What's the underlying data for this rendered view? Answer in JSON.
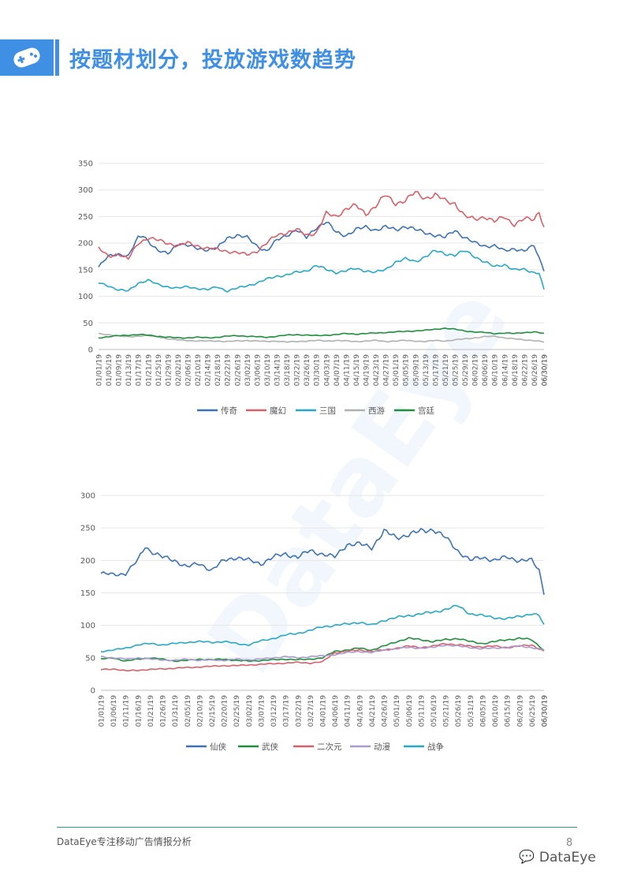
{
  "header": {
    "title": "按题材划分，投放游戏数趋势",
    "icon": "gamepad-icon"
  },
  "watermark_text": "DataEye",
  "footer": {
    "text": "DataEye专注移动广告情报分析",
    "page": "8",
    "logo_text": "DataEye"
  },
  "colors": {
    "accent": "#3f8fe5"
  },
  "chart_data": [
    {
      "type": "line",
      "ylim": [
        0,
        350
      ],
      "yticks": [
        0,
        50,
        100,
        150,
        200,
        250,
        300,
        350
      ],
      "x_start": "2019-01-01",
      "x_end": "2019-06-30",
      "x_label_step": 4,
      "grid": true,
      "legend": "bottom",
      "series": [
        {
          "name": "传奇",
          "color": "#3d72b8",
          "key_x": [
            "01/01",
            "01/05",
            "01/09",
            "01/13",
            "01/17",
            "01/19",
            "01/21",
            "01/25",
            "01/29",
            "02/02",
            "02/06",
            "02/10",
            "02/14",
            "02/18",
            "02/22",
            "02/26",
            "03/02",
            "03/06",
            "03/10",
            "03/14",
            "03/18",
            "03/22",
            "03/26",
            "03/30",
            "04/03",
            "04/07",
            "04/11",
            "04/15",
            "04/19",
            "04/23",
            "04/27",
            "05/01",
            "05/05",
            "05/09",
            "05/13",
            "05/17",
            "05/21",
            "05/25",
            "05/29",
            "06/02",
            "06/06",
            "06/10",
            "06/14",
            "06/18",
            "06/22",
            "06/26",
            "06/30"
          ],
          "key_y": [
            155,
            175,
            180,
            175,
            210,
            215,
            205,
            185,
            180,
            200,
            195,
            190,
            188,
            190,
            210,
            215,
            210,
            195,
            185,
            205,
            215,
            225,
            210,
            230,
            240,
            220,
            215,
            225,
            230,
            225,
            230,
            225,
            232,
            225,
            220,
            215,
            210,
            225,
            210,
            200,
            195,
            195,
            185,
            190,
            185,
            195,
            150
          ]
        },
        {
          "name": "魔幻",
          "color": "#d9606a",
          "key_x": [
            "01/01",
            "01/05",
            "01/09",
            "01/13",
            "01/17",
            "01/21",
            "01/25",
            "01/29",
            "02/02",
            "02/06",
            "02/10",
            "02/14",
            "02/18",
            "02/22",
            "02/26",
            "03/02",
            "03/06",
            "03/10",
            "03/14",
            "03/18",
            "03/22",
            "03/26",
            "03/30",
            "04/03",
            "04/07",
            "04/11",
            "04/15",
            "04/19",
            "04/23",
            "04/27",
            "05/01",
            "05/05",
            "05/09",
            "05/13",
            "05/17",
            "05/21",
            "05/25",
            "05/29",
            "06/02",
            "06/06",
            "06/10",
            "06/14",
            "06/18",
            "06/22",
            "06/26",
            "06/28",
            "06/30"
          ],
          "key_y": [
            190,
            175,
            180,
            170,
            200,
            210,
            205,
            200,
            195,
            200,
            195,
            190,
            188,
            185,
            182,
            178,
            185,
            200,
            215,
            220,
            225,
            215,
            220,
            255,
            250,
            265,
            270,
            255,
            270,
            290,
            275,
            280,
            295,
            285,
            290,
            280,
            275,
            250,
            245,
            250,
            240,
            250,
            235,
            245,
            245,
            260,
            230
          ]
        },
        {
          "name": "三国",
          "color": "#26a8c9",
          "key_x": [
            "01/01",
            "01/05",
            "01/09",
            "01/13",
            "01/17",
            "01/21",
            "01/25",
            "01/29",
            "02/02",
            "02/06",
            "02/10",
            "02/14",
            "02/18",
            "02/22",
            "02/26",
            "03/02",
            "03/06",
            "03/10",
            "03/14",
            "03/18",
            "03/22",
            "03/26",
            "03/30",
            "04/03",
            "04/07",
            "04/11",
            "04/15",
            "04/19",
            "04/23",
            "04/27",
            "05/01",
            "05/05",
            "05/09",
            "05/13",
            "05/17",
            "05/21",
            "05/25",
            "05/29",
            "06/02",
            "06/06",
            "06/10",
            "06/14",
            "06/18",
            "06/22",
            "06/26",
            "06/28",
            "06/30"
          ],
          "key_y": [
            125,
            120,
            112,
            110,
            125,
            130,
            122,
            118,
            115,
            118,
            115,
            112,
            118,
            110,
            115,
            120,
            125,
            132,
            138,
            140,
            145,
            148,
            158,
            150,
            145,
            148,
            152,
            148,
            145,
            150,
            165,
            170,
            165,
            175,
            185,
            180,
            178,
            185,
            175,
            165,
            155,
            160,
            150,
            150,
            145,
            145,
            112
          ]
        },
        {
          "name": "西游",
          "color": "#b0b0b0",
          "key_x": [
            "01/01",
            "01/05",
            "01/09",
            "01/13",
            "01/17",
            "01/21",
            "01/25",
            "01/29",
            "02/02",
            "02/06",
            "02/10",
            "02/14",
            "02/18",
            "02/22",
            "02/26",
            "03/02",
            "03/06",
            "03/10",
            "03/14",
            "03/18",
            "03/22",
            "03/26",
            "03/30",
            "04/03",
            "04/07",
            "04/11",
            "04/15",
            "04/19",
            "04/23",
            "04/27",
            "05/01",
            "05/05",
            "05/09",
            "05/13",
            "05/17",
            "05/21",
            "05/25",
            "05/29",
            "06/02",
            "06/06",
            "06/10",
            "06/14",
            "06/18",
            "06/22",
            "06/26",
            "06/30"
          ],
          "key_y": [
            30,
            28,
            25,
            24,
            25,
            26,
            24,
            20,
            18,
            17,
            16,
            16,
            16,
            15,
            16,
            17,
            16,
            15,
            16,
            14,
            15,
            16,
            17,
            16,
            17,
            16,
            15,
            16,
            17,
            15,
            16,
            17,
            16,
            15,
            17,
            16,
            18,
            20,
            22,
            24,
            25,
            22,
            20,
            18,
            17,
            14
          ]
        },
        {
          "name": "宫廷",
          "color": "#1e8f3c",
          "key_x": [
            "01/01",
            "01/05",
            "01/09",
            "01/13",
            "01/17",
            "01/21",
            "01/25",
            "01/29",
            "02/02",
            "02/06",
            "02/10",
            "02/14",
            "02/18",
            "02/22",
            "02/26",
            "03/02",
            "03/06",
            "03/10",
            "03/14",
            "03/18",
            "03/22",
            "03/26",
            "03/30",
            "04/03",
            "04/07",
            "04/11",
            "04/15",
            "04/19",
            "04/23",
            "04/27",
            "05/01",
            "05/05",
            "05/09",
            "05/13",
            "05/17",
            "05/21",
            "05/25",
            "05/29",
            "06/02",
            "06/06",
            "06/10",
            "06/14",
            "06/18",
            "06/22",
            "06/26",
            "06/30"
          ],
          "key_y": [
            22,
            24,
            26,
            27,
            28,
            27,
            25,
            23,
            22,
            22,
            23,
            22,
            23,
            25,
            26,
            25,
            24,
            23,
            25,
            27,
            28,
            27,
            26,
            27,
            28,
            30,
            29,
            30,
            31,
            32,
            33,
            34,
            35,
            36,
            38,
            40,
            38,
            35,
            33,
            32,
            30,
            31,
            30,
            32,
            33,
            30
          ]
        }
      ]
    },
    {
      "type": "line",
      "ylim": [
        0,
        300
      ],
      "yticks": [
        0,
        50,
        100,
        150,
        200,
        250,
        300
      ],
      "x_start": "2019-01-01",
      "x_end": "2019-06-30",
      "x_label_step": 5,
      "grid": true,
      "legend": "bottom",
      "series": [
        {
          "name": "仙侠",
          "color": "#3d72b8",
          "key_x": [
            "01/01",
            "01/06",
            "01/11",
            "01/16",
            "01/19",
            "01/21",
            "01/26",
            "01/31",
            "02/05",
            "02/10",
            "02/15",
            "02/20",
            "02/25",
            "03/02",
            "03/07",
            "03/12",
            "03/17",
            "03/22",
            "03/27",
            "04/01",
            "04/06",
            "04/11",
            "04/16",
            "04/21",
            "04/26",
            "05/01",
            "05/06",
            "05/11",
            "05/16",
            "05/21",
            "05/26",
            "05/31",
            "06/05",
            "06/10",
            "06/15",
            "06/20",
            "06/25",
            "06/28",
            "06/30"
          ],
          "key_y": [
            180,
            178,
            180,
            200,
            222,
            215,
            205,
            200,
            190,
            195,
            185,
            200,
            205,
            200,
            195,
            205,
            210,
            205,
            215,
            210,
            205,
            225,
            225,
            220,
            245,
            235,
            240,
            245,
            248,
            235,
            215,
            200,
            205,
            200,
            205,
            200,
            200,
            185,
            150
          ]
        },
        {
          "name": "武侠",
          "color": "#1e8f3c",
          "key_x": [
            "01/01",
            "01/06",
            "01/11",
            "01/16",
            "01/21",
            "01/26",
            "01/31",
            "02/05",
            "02/10",
            "02/15",
            "02/20",
            "02/25",
            "03/02",
            "03/07",
            "03/12",
            "03/17",
            "03/22",
            "03/27",
            "04/01",
            "04/06",
            "04/11",
            "04/16",
            "04/21",
            "04/26",
            "05/01",
            "05/06",
            "05/11",
            "05/16",
            "05/21",
            "05/26",
            "05/31",
            "06/05",
            "06/10",
            "06/15",
            "06/20",
            "06/25",
            "06/30"
          ],
          "key_y": [
            48,
            50,
            45,
            48,
            50,
            48,
            45,
            46,
            48,
            47,
            48,
            46,
            45,
            46,
            47,
            48,
            47,
            48,
            50,
            60,
            62,
            65,
            62,
            68,
            75,
            80,
            78,
            75,
            78,
            80,
            75,
            72,
            75,
            78,
            80,
            78,
            62
          ]
        },
        {
          "name": "二次元",
          "color": "#d9606a",
          "key_x": [
            "01/01",
            "01/06",
            "01/11",
            "01/16",
            "01/21",
            "01/26",
            "01/31",
            "02/05",
            "02/10",
            "02/15",
            "02/20",
            "02/25",
            "03/02",
            "03/07",
            "03/12",
            "03/17",
            "03/22",
            "03/27",
            "04/01",
            "04/06",
            "04/11",
            "04/16",
            "04/21",
            "04/26",
            "05/01",
            "05/06",
            "05/11",
            "05/16",
            "05/21",
            "05/26",
            "05/31",
            "06/05",
            "06/10",
            "06/15",
            "06/20",
            "06/25",
            "06/30"
          ],
          "key_y": [
            32,
            33,
            30,
            31,
            32,
            33,
            34,
            35,
            36,
            37,
            38,
            38,
            39,
            40,
            41,
            42,
            43,
            42,
            44,
            58,
            60,
            62,
            60,
            62,
            65,
            68,
            66,
            68,
            72,
            70,
            68,
            67,
            68,
            66,
            68,
            70,
            60
          ]
        },
        {
          "name": "动漫",
          "color": "#a99ad0",
          "key_x": [
            "01/01",
            "01/06",
            "01/11",
            "01/16",
            "01/21",
            "01/26",
            "01/31",
            "02/05",
            "02/10",
            "02/15",
            "02/20",
            "02/25",
            "03/02",
            "03/07",
            "03/12",
            "03/17",
            "03/22",
            "03/27",
            "04/01",
            "04/06",
            "04/11",
            "04/16",
            "04/21",
            "04/26",
            "05/01",
            "05/06",
            "05/11",
            "05/16",
            "05/21",
            "05/26",
            "05/31",
            "06/05",
            "06/10",
            "06/15",
            "06/20",
            "06/25",
            "06/30"
          ],
          "key_y": [
            52,
            50,
            48,
            50,
            48,
            47,
            46,
            48,
            46,
            47,
            46,
            48,
            47,
            48,
            50,
            52,
            50,
            52,
            53,
            55,
            58,
            60,
            58,
            62,
            64,
            66,
            65,
            66,
            70,
            68,
            66,
            64,
            65,
            66,
            68,
            66,
            62
          ]
        },
        {
          "name": "战争",
          "color": "#26a8c9",
          "key_x": [
            "01/01",
            "01/06",
            "01/11",
            "01/16",
            "01/21",
            "01/26",
            "01/31",
            "02/05",
            "02/10",
            "02/15",
            "02/20",
            "02/25",
            "03/02",
            "03/07",
            "03/12",
            "03/17",
            "03/22",
            "03/27",
            "04/01",
            "04/06",
            "04/11",
            "04/16",
            "04/21",
            "04/26",
            "05/01",
            "05/06",
            "05/11",
            "05/16",
            "05/21",
            "05/26",
            "05/31",
            "06/05",
            "06/10",
            "06/15",
            "06/20",
            "06/25",
            "06/28",
            "06/30"
          ],
          "key_y": [
            60,
            62,
            65,
            70,
            72,
            70,
            72,
            74,
            75,
            74,
            75,
            72,
            70,
            76,
            80,
            85,
            88,
            92,
            98,
            100,
            102,
            105,
            100,
            108,
            112,
            115,
            118,
            120,
            125,
            130,
            118,
            115,
            112,
            110,
            114,
            118,
            115,
            100
          ]
        }
      ]
    }
  ]
}
